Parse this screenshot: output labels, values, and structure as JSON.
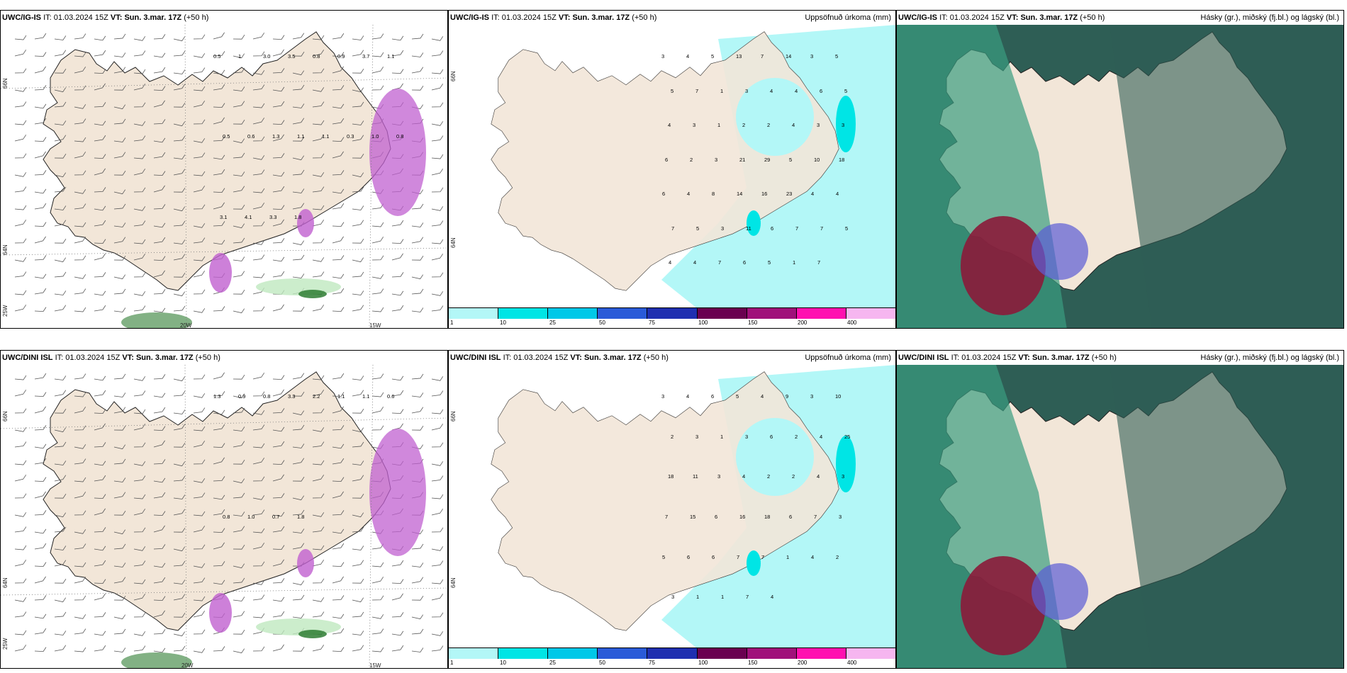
{
  "colors": {
    "land": "#f2e6d8",
    "sea": "#ffffff",
    "precip_light": "#b3f7f7",
    "precip_cyan": "#00e5e5",
    "green_light": "#bfe8bf",
    "green_dark": "#2e7d32",
    "magenta": "#c060d0",
    "cloud_dark": "#2e5e55",
    "cloud_teal": "#3a9c80",
    "cloud_red": "#8b1a3a",
    "cloud_blue": "#5b5bd6"
  },
  "top": {
    "wind": {
      "model": "UWC/IG-IS",
      "it_label": "IT:",
      "it_value": "01.03.2024 15Z",
      "vt_label": "VT:",
      "vt_value": "Sun. 3.mar. 17Z",
      "lead": "(+50 h)",
      "coords": {
        "lat66": "66N",
        "lat64": "64N",
        "lon25": "25W",
        "lon20": "20W",
        "lon15": "15W"
      },
      "values": [
        "0.5",
        "1",
        "3.0",
        "3.5",
        "0.8",
        "0.9",
        "3.7",
        "1.1",
        "0.5",
        "0.6",
        "1.3",
        "1.1",
        "1.1",
        "0.3",
        "1.0",
        "0.8",
        "3.1",
        "4.1",
        "3.3",
        "1.8"
      ]
    },
    "precip": {
      "model": "UWC/IG-IS",
      "it_label": "IT:",
      "it_value": "01.03.2024 15Z",
      "vt_label": "VT:",
      "vt_value": "Sun. 3.mar. 17Z",
      "lead": "(+50 h)",
      "title": "Uppsöfnuð úrkoma (mm)",
      "coords": {
        "lat66": "66N",
        "lat64": "64N"
      },
      "values": [
        "3",
        "4",
        "5",
        "13",
        "7",
        "14",
        "3",
        "5",
        "5",
        "7",
        "1",
        "3",
        "4",
        "4",
        "6",
        "5",
        "4",
        "3",
        "1",
        "2",
        "2",
        "4",
        "3",
        "3",
        "6",
        "2",
        "3",
        "21",
        "29",
        "5",
        "10",
        "18",
        "6",
        "4",
        "8",
        "14",
        "16",
        "23",
        "4",
        "4",
        "7",
        "5",
        "3",
        "11",
        "6",
        "7",
        "7",
        "5",
        "4",
        "4",
        "7",
        "6",
        "5",
        "1",
        "7"
      ]
    },
    "cloud": {
      "model": "UWC/IG-IS",
      "it_label": "IT:",
      "it_value": "01.03.2024 15Z",
      "vt_label": "VT:",
      "vt_value": "Sun. 3.mar. 17Z",
      "lead": "(+50 h)",
      "title": "Hásky (gr.), miðský (fj.bl.) og lágský (bl.)"
    }
  },
  "bottom": {
    "wind": {
      "model": "UWC/DINI ISL",
      "it_label": "IT:",
      "it_value": "01.03.2024 15Z",
      "vt_label": "VT:",
      "vt_value": "Sun. 3.mar. 17Z",
      "lead": "(+50 h)",
      "coords": {
        "lat66": "66N",
        "lat64": "64N",
        "lon25": "25W",
        "lon20": "20W",
        "lon15": "15W"
      },
      "values": [
        "1.3",
        "0.9",
        "0.8",
        "3.3",
        "2.2",
        "1.1",
        "1.1",
        "0.6",
        "0.8",
        "1.0",
        "0.7",
        "1.8"
      ]
    },
    "precip": {
      "model": "UWC/DINI ISL",
      "it_label": "IT:",
      "it_value": "01.03.2024 15Z",
      "vt_label": "VT:",
      "vt_value": "Sun. 3.mar. 17Z",
      "lead": "(+50 h)",
      "title": "Uppsöfnuð úrkoma (mm)",
      "coords": {
        "lat66": "66N",
        "lat64": "64N"
      },
      "values": [
        "3",
        "4",
        "6",
        "5",
        "4",
        "9",
        "3",
        "10",
        "2",
        "3",
        "1",
        "3",
        "6",
        "2",
        "4",
        "25",
        "18",
        "11",
        "3",
        "4",
        "2",
        "2",
        "4",
        "3",
        "7",
        "15",
        "6",
        "16",
        "18",
        "6",
        "7",
        "3",
        "5",
        "6",
        "6",
        "7",
        "7",
        "1",
        "4",
        "2",
        "3",
        "1",
        "1",
        "7",
        "4"
      ]
    },
    "cloud": {
      "model": "UWC/DINI ISL",
      "it_label": "IT:",
      "it_value": "01.03.2024 15Z",
      "vt_label": "VT:",
      "vt_value": "Sun. 3.mar. 17Z",
      "lead": "(+50 h)",
      "title": "Hásky (gr.), miðský (fj.bl.) og lágský (bl.)"
    }
  },
  "colorbar": {
    "ticks": [
      "1",
      "10",
      "25",
      "50",
      "75",
      "100",
      "150",
      "200",
      "400"
    ],
    "colors": [
      "#b3f7f7",
      "#00e5e5",
      "#00c8e8",
      "#2a5bd8",
      "#1f2fb0",
      "#6a0050",
      "#a0107a",
      "#ff10b0",
      "#f6b6f0"
    ]
  }
}
